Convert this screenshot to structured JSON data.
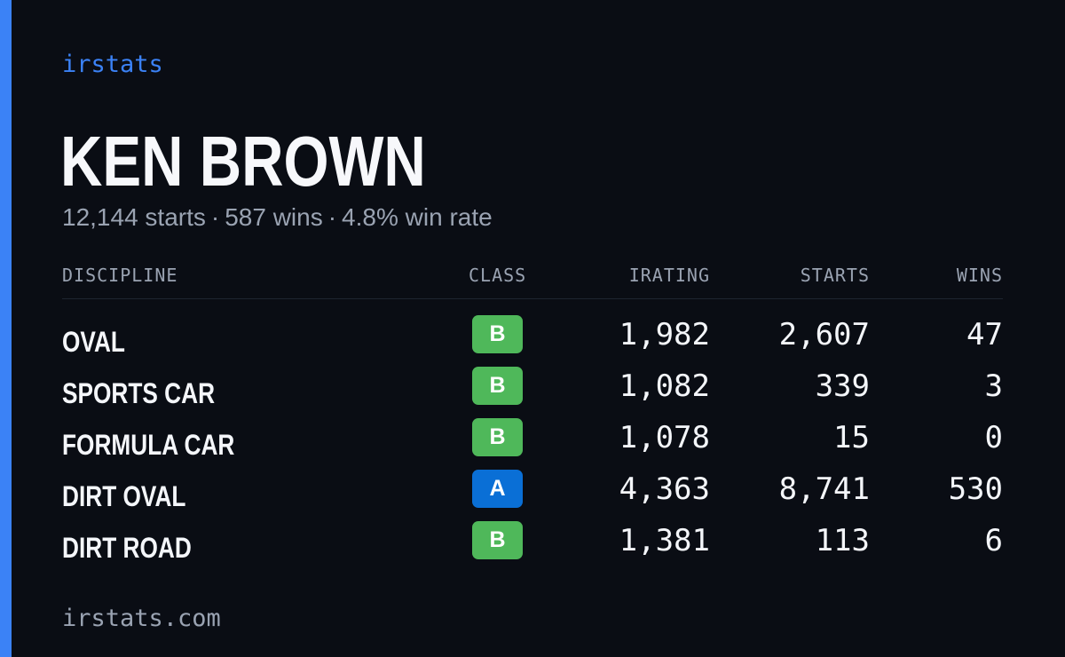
{
  "brand": "irstats",
  "driver": {
    "name": "KEN BROWN",
    "starts": "12,144 starts",
    "wins": "587 wins",
    "win_rate": "4.8% win rate",
    "separator": "·"
  },
  "table": {
    "headers": {
      "discipline": "DISCIPLINE",
      "class": "CLASS",
      "irating": "IRATING",
      "starts": "STARTS",
      "wins": "WINS"
    },
    "rows": [
      {
        "discipline": "OVAL",
        "class": "B",
        "irating": "1,982",
        "starts": "2,607",
        "wins": "47"
      },
      {
        "discipline": "SPORTS CAR",
        "class": "B",
        "irating": "1,082",
        "starts": "339",
        "wins": "3"
      },
      {
        "discipline": "FORMULA CAR",
        "class": "B",
        "irating": "1,078",
        "starts": "15",
        "wins": "0"
      },
      {
        "discipline": "DIRT OVAL",
        "class": "A",
        "irating": "4,363",
        "starts": "8,741",
        "wins": "530"
      },
      {
        "discipline": "DIRT ROAD",
        "class": "B",
        "irating": "1,381",
        "starts": "113",
        "wins": "6"
      }
    ]
  },
  "class_colors": {
    "A": "#0a6fd6",
    "B": "#4fb85a"
  },
  "accent_color": "#3b82f6",
  "footer": "irstats.com"
}
